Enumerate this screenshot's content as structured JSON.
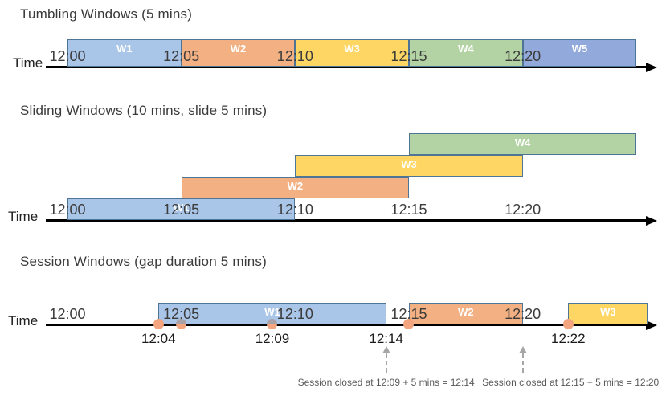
{
  "colors": {
    "blue": "#A9C6E8",
    "orange": "#F3B183",
    "yellow": "#FDD663",
    "green": "#B4D3A4",
    "periwinkle": "#92A9DB",
    "box_border": "#4E7496",
    "axis": "#000000",
    "tick_text": "#3B3B3B",
    "title_text": "#3A3A3A",
    "event_fill": "#F2A57E",
    "event_muted": "#A9A2A6",
    "note_text": "#595959",
    "note_arrow": "#A6A6A6"
  },
  "sections": [
    {
      "title": "Tumbling Windows (5 mins)",
      "time_label": "Time",
      "ticks": [
        {
          "text": "12:00",
          "min": 0
        },
        {
          "text": "12:05",
          "min": 5
        },
        {
          "text": "12:10",
          "min": 10
        },
        {
          "text": "12:15",
          "min": 15
        },
        {
          "text": "12:20",
          "min": 20
        }
      ],
      "windows": [
        {
          "label": "W1",
          "start_min": 0,
          "end_min": 5,
          "color": "blue",
          "level": 0
        },
        {
          "label": "W2",
          "start_min": 5,
          "end_min": 10,
          "color": "orange",
          "level": 0
        },
        {
          "label": "W3",
          "start_min": 10,
          "end_min": 15,
          "color": "yellow",
          "level": 0
        },
        {
          "label": "W4",
          "start_min": 15,
          "end_min": 20,
          "color": "green",
          "level": 0
        },
        {
          "label": "W5",
          "start_min": 20,
          "end_min": 25,
          "color": "periwinkle",
          "level": 0
        }
      ]
    },
    {
      "title": "Sliding Windows (10 mins, slide 5 mins)",
      "time_label": "Time",
      "ticks": [
        {
          "text": "12:00",
          "min": 0
        },
        {
          "text": "12:05",
          "min": 5
        },
        {
          "text": "12:10",
          "min": 10
        },
        {
          "text": "12:15",
          "min": 15
        },
        {
          "text": "12:20",
          "min": 20
        }
      ],
      "windows": [
        {
          "label": "W1",
          "start_min": 0,
          "end_min": 10,
          "color": "blue",
          "level": 0
        },
        {
          "label": "W2",
          "start_min": 5,
          "end_min": 15,
          "color": "orange",
          "level": 1
        },
        {
          "label": "W3",
          "start_min": 10,
          "end_min": 20,
          "color": "yellow",
          "level": 2
        },
        {
          "label": "W4",
          "start_min": 15,
          "end_min": 25,
          "color": "green",
          "level": 3
        }
      ]
    },
    {
      "title": "Session Windows (gap duration 5 mins)",
      "time_label": "Time",
      "ticks": [
        {
          "text": "12:00",
          "min": 0
        },
        {
          "text": "12:05",
          "min": 5
        },
        {
          "text": "12:10",
          "min": 10
        },
        {
          "text": "12:15",
          "min": 15
        },
        {
          "text": "12:20",
          "min": 20
        }
      ],
      "windows": [
        {
          "label": "W1",
          "start_min": 4,
          "end_min": 14,
          "color": "blue",
          "level": 0
        },
        {
          "label": "W2",
          "start_min": 15,
          "end_min": 20,
          "color": "orange",
          "level": 0
        },
        {
          "label": "W3",
          "start_min": 22,
          "end_min": 25.5,
          "color": "yellow",
          "level": 0
        }
      ],
      "events": [
        {
          "min": 4,
          "muted": false
        },
        {
          "min": 5,
          "muted": true
        },
        {
          "min": 9,
          "muted": true
        },
        {
          "min": 15,
          "muted": false
        },
        {
          "min": 22,
          "muted": false
        }
      ],
      "event_labels": [
        {
          "text": "12:04",
          "min": 4
        },
        {
          "text": "12:09",
          "min": 9
        },
        {
          "text": "12:14",
          "min": 14
        },
        {
          "text": "12:22",
          "min": 22
        }
      ],
      "notes": [
        {
          "text": "Session closed at 12:09 + 5 mins = 12:14",
          "arrow_min": 14,
          "center_min": 14
        },
        {
          "text": "Session closed at 12:15 + 5 mins = 12:20",
          "arrow_min": 20,
          "center_min": 22.1
        }
      ]
    }
  ]
}
